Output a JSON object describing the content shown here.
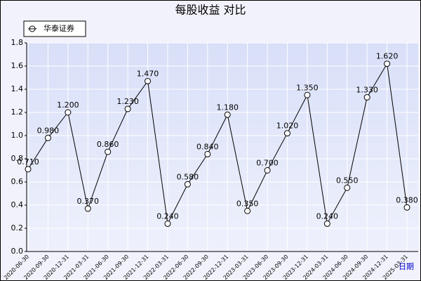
{
  "chart_data": {
    "type": "line",
    "title": "每股收益  对比",
    "x_label": "日期",
    "categories": [
      "2020-06-30",
      "2020-09-30",
      "2020-12-31",
      "2021-03-31",
      "2021-06-30",
      "2021-09-30",
      "2021-12-31",
      "2022-03-31",
      "2022-06-30",
      "2022-09-30",
      "2022-12-31",
      "2023-03-31",
      "2023-06-30",
      "2023-09-30",
      "2023-12-31",
      "2024-03-31",
      "2024-06-30",
      "2024-09-30",
      "2024-12-31",
      "2025-03-31"
    ],
    "series": [
      {
        "name": "华泰证券",
        "color": "#000000",
        "values": [
          0.71,
          0.98,
          1.2,
          0.37,
          0.86,
          1.23,
          1.47,
          0.24,
          0.58,
          0.84,
          1.18,
          0.35,
          0.7,
          1.02,
          1.35,
          0.24,
          0.55,
          1.33,
          1.62,
          0.38
        ],
        "value_labels": [
          "0.710",
          "0.980",
          "1.200",
          "0.370",
          "0.860",
          "1.230",
          "1.470",
          "0.240",
          "0.580",
          "0.840",
          "1.180",
          "0.350",
          "0.700",
          "1.020",
          "1.350",
          "0.240",
          "0.550",
          "1.330",
          "1.620",
          "0.380"
        ]
      }
    ],
    "ylim": [
      0,
      1.8
    ],
    "yticks": [
      {
        "value": 0,
        "label": "0.0"
      },
      0.2,
      0.4,
      0.6,
      0.8,
      {
        "value": 1,
        "label": "1.0"
      },
      1.2,
      1.4,
      1.6,
      1.8
    ],
    "grid": true,
    "legend": "top-left"
  }
}
